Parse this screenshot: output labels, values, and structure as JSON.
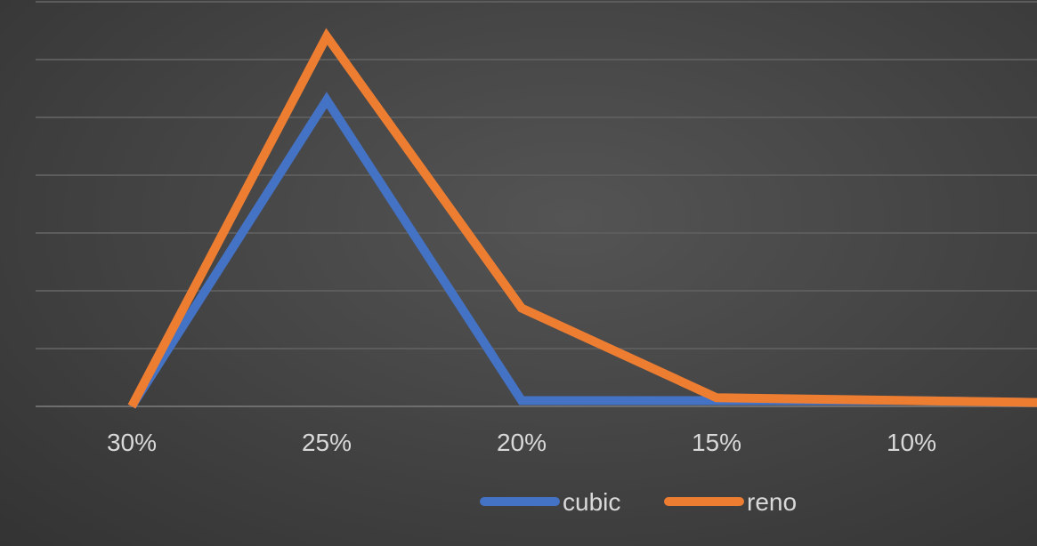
{
  "chart_data": {
    "type": "line",
    "categories": [
      "30%",
      "25%",
      "20%",
      "15%",
      "10%",
      ""
    ],
    "series": [
      {
        "name": "cubic",
        "color": "#4472c4",
        "values": [
          0,
          5.3,
          0.1,
          0.1,
          0.1,
          0.05
        ]
      },
      {
        "name": "reno",
        "color": "#ed7d31",
        "values": [
          0,
          6.4,
          1.7,
          0.15,
          0.1,
          0.05
        ]
      }
    ],
    "ylim": [
      0,
      7
    ],
    "grid": true,
    "legend": "bottom-center",
    "title": "",
    "xlabel": "",
    "ylabel": ""
  }
}
